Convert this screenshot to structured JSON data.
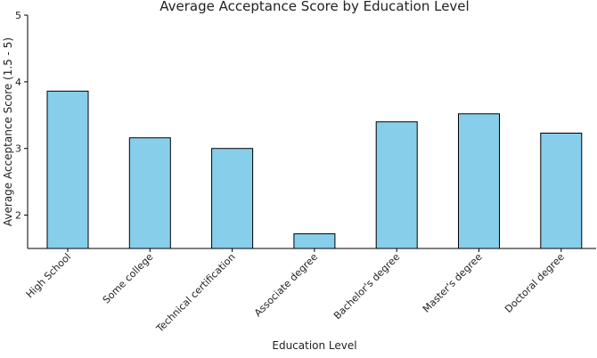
{
  "chart_data": {
    "type": "bar",
    "title": "Average Acceptance Score by Education Level",
    "xlabel": "Education Level",
    "ylabel": "Average Acceptance Score (1.5 - 5)",
    "categories": [
      "High School",
      "Some college",
      "Technical certification",
      "Associate degree",
      "Bachelor's degree",
      "Master's degree",
      "Doctoral degree"
    ],
    "values": [
      3.86,
      3.16,
      3.0,
      1.72,
      3.4,
      3.52,
      3.23
    ],
    "ylim": [
      1.5,
      5
    ],
    "yticks": [
      "2",
      "3",
      "4",
      "5"
    ],
    "grid": false,
    "bar_color": "#87CEEB",
    "edge_color": "#000000"
  }
}
